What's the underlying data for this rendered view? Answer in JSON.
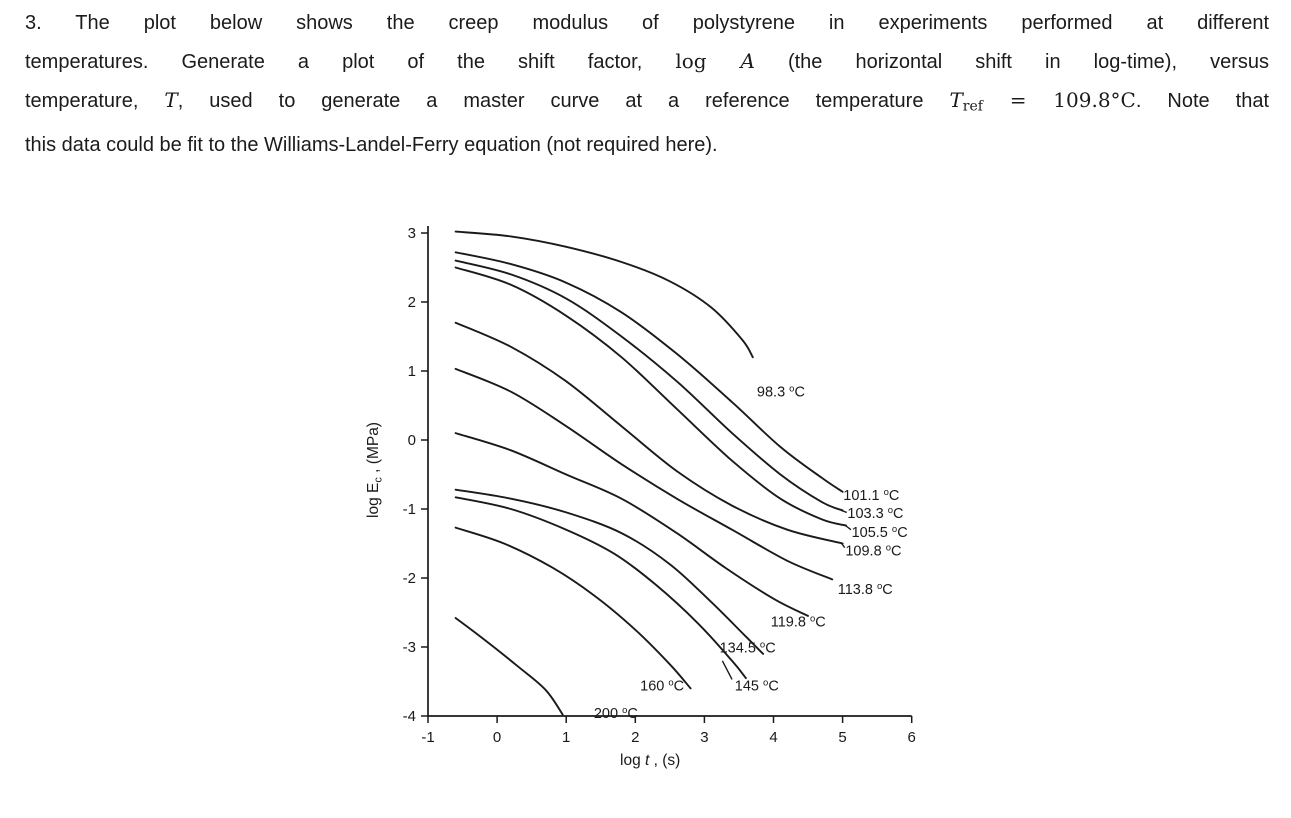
{
  "page": {
    "background": "#ffffff",
    "text_color": "#1b1b1b",
    "ink_color": "#1a1a1a"
  },
  "problem": {
    "lines": [
      [
        {
          "t": "3. The plot below shows the creep modulus of polystyrene in experiments performed at different"
        }
      ],
      [
        {
          "t": "temperatures. Generate a plot of the shift factor, "
        },
        {
          "t": "log ",
          "s": "m"
        },
        {
          "t": "A",
          "s": "mi"
        },
        {
          "t": " (the horizontal shift in log-time), versus"
        }
      ],
      [
        {
          "t": "temperature, "
        },
        {
          "t": "T",
          "s": "mi"
        },
        {
          "t": ", used to generate a master curve at a reference temperature "
        },
        {
          "t": "T",
          "s": "mi"
        },
        {
          "t": "ref",
          "s": "msub"
        },
        {
          "t": " = 109.8°C",
          "s": "m"
        },
        {
          "t": ". Note that"
        }
      ],
      [
        {
          "t": "this data could be fit to the Williams-Landel-Ferry equation (not required here)."
        }
      ]
    ]
  },
  "chart_data": {
    "type": "line",
    "title": "",
    "xlabel_text": "log t , (s)",
    "ylabel_text": "log Ec , (MPa)",
    "xlabel_parts": [
      {
        "t": "log "
      },
      {
        "t": "t",
        "s": "i"
      },
      {
        "t": " , (s)"
      }
    ],
    "ylabel_parts": [
      {
        "t": "log E"
      },
      {
        "t": "c",
        "s": "sub"
      },
      {
        "t": " , (MPa)"
      }
    ],
    "xlim": [
      -1,
      6
    ],
    "ylim": [
      -4,
      3
    ],
    "xtick_labels": [
      "-1",
      "0",
      "1",
      "2",
      "3",
      "4",
      "5",
      "6"
    ],
    "ytick_labels": [
      "3",
      "2",
      "1",
      "0",
      "-1",
      "-2",
      "-3",
      "-4"
    ],
    "grid": false,
    "legend": "inline-curve-labels",
    "axis_color": "#1a1a1a",
    "curve_color": "#1a1a1a",
    "series": [
      {
        "label": "98.3 °C",
        "label_pos": [
          3.76,
          0.7
        ],
        "points": [
          [
            -0.6,
            3.02
          ],
          [
            0.2,
            2.95
          ],
          [
            1.0,
            2.8
          ],
          [
            1.8,
            2.58
          ],
          [
            2.5,
            2.3
          ],
          [
            3.1,
            1.92
          ],
          [
            3.55,
            1.45
          ],
          [
            3.7,
            1.2
          ]
        ]
      },
      {
        "label": "101.1 °C",
        "label_pos": [
          5.01,
          -0.8
        ],
        "points": [
          [
            -0.6,
            2.72
          ],
          [
            0.2,
            2.55
          ],
          [
            1.0,
            2.28
          ],
          [
            1.8,
            1.85
          ],
          [
            2.6,
            1.25
          ],
          [
            3.4,
            0.55
          ],
          [
            4.1,
            -0.1
          ],
          [
            4.7,
            -0.55
          ],
          [
            5.0,
            -0.75
          ]
        ]
      },
      {
        "label": "103.3 °C",
        "label_pos": [
          5.07,
          -1.06
        ],
        "leader": [
          [
            4.98,
            -1.02
          ],
          [
            5.06,
            -1.05
          ]
        ],
        "points": [
          [
            -0.6,
            2.6
          ],
          [
            0.2,
            2.4
          ],
          [
            1.0,
            2.05
          ],
          [
            1.8,
            1.5
          ],
          [
            2.6,
            0.85
          ],
          [
            3.4,
            0.1
          ],
          [
            4.1,
            -0.5
          ],
          [
            4.7,
            -0.9
          ],
          [
            5.0,
            -1.02
          ]
        ]
      },
      {
        "label": "105.5 °C",
        "label_pos": [
          5.13,
          -1.33
        ],
        "leader": [
          [
            5.03,
            -1.23
          ],
          [
            5.12,
            -1.3
          ]
        ],
        "points": [
          [
            -0.6,
            2.5
          ],
          [
            0.2,
            2.25
          ],
          [
            1.0,
            1.8
          ],
          [
            1.8,
            1.2
          ],
          [
            2.6,
            0.45
          ],
          [
            3.4,
            -0.3
          ],
          [
            4.1,
            -0.85
          ],
          [
            4.7,
            -1.15
          ],
          [
            5.05,
            -1.24
          ]
        ]
      },
      {
        "label": "109.8 °C",
        "label_pos": [
          5.04,
          -1.6
        ],
        "leader": [
          [
            4.98,
            -1.49
          ],
          [
            5.03,
            -1.56
          ]
        ],
        "points": [
          [
            -0.6,
            1.7
          ],
          [
            0.2,
            1.35
          ],
          [
            1.0,
            0.85
          ],
          [
            1.8,
            0.2
          ],
          [
            2.6,
            -0.45
          ],
          [
            3.4,
            -0.95
          ],
          [
            4.2,
            -1.3
          ],
          [
            5.0,
            -1.5
          ]
        ]
      },
      {
        "label": "113.8 °C",
        "label_pos": [
          4.93,
          -2.16
        ],
        "points": [
          [
            -0.6,
            1.03
          ],
          [
            0.2,
            0.7
          ],
          [
            1.0,
            0.2
          ],
          [
            1.8,
            -0.35
          ],
          [
            2.6,
            -0.85
          ],
          [
            3.4,
            -1.3
          ],
          [
            4.2,
            -1.75
          ],
          [
            4.85,
            -2.02
          ]
        ]
      },
      {
        "label": "119.8 °C",
        "label_pos": [
          3.96,
          -2.63
        ],
        "points": [
          [
            -0.6,
            0.1
          ],
          [
            0.2,
            -0.15
          ],
          [
            1.0,
            -0.5
          ],
          [
            1.8,
            -0.85
          ],
          [
            2.6,
            -1.35
          ],
          [
            3.3,
            -1.85
          ],
          [
            4.0,
            -2.3
          ],
          [
            4.5,
            -2.55
          ]
        ]
      },
      {
        "label": "134.5 °C",
        "label_pos": [
          3.22,
          -3.01
        ],
        "points": [
          [
            -0.6,
            -0.72
          ],
          [
            0.2,
            -0.85
          ],
          [
            1.0,
            -1.05
          ],
          [
            1.8,
            -1.35
          ],
          [
            2.5,
            -1.8
          ],
          [
            3.1,
            -2.35
          ],
          [
            3.6,
            -2.85
          ],
          [
            3.85,
            -3.1
          ]
        ]
      },
      {
        "label": "145 °C",
        "label_pos": [
          3.44,
          -3.56
        ],
        "leader": [
          [
            3.26,
            -3.2
          ],
          [
            3.4,
            -3.47
          ]
        ],
        "points": [
          [
            -0.6,
            -0.83
          ],
          [
            0.2,
            -1.0
          ],
          [
            1.0,
            -1.3
          ],
          [
            1.7,
            -1.65
          ],
          [
            2.3,
            -2.1
          ],
          [
            2.9,
            -2.65
          ],
          [
            3.4,
            -3.2
          ],
          [
            3.6,
            -3.45
          ]
        ]
      },
      {
        "label": "160 °C",
        "label_pos": [
          2.07,
          -3.56
        ],
        "points": [
          [
            -0.6,
            -1.27
          ],
          [
            0.1,
            -1.5
          ],
          [
            0.8,
            -1.85
          ],
          [
            1.4,
            -2.25
          ],
          [
            2.0,
            -2.75
          ],
          [
            2.5,
            -3.25
          ],
          [
            2.8,
            -3.6
          ]
        ]
      },
      {
        "label": "200 °C",
        "label_pos": [
          1.4,
          -3.96
        ],
        "points": [
          [
            -0.6,
            -2.58
          ],
          [
            -0.15,
            -2.92
          ],
          [
            0.3,
            -3.28
          ],
          [
            0.7,
            -3.62
          ],
          [
            0.95,
            -3.98
          ]
        ]
      }
    ]
  }
}
